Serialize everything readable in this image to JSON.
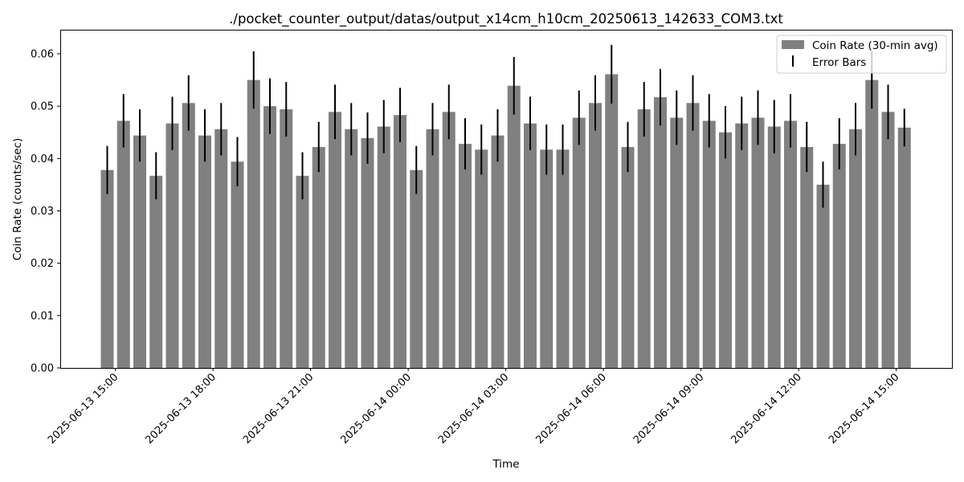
{
  "chart_data": {
    "type": "bar",
    "title": "./pocket_counter_output/datas/output_x14cm_h10cm_20250613_142633_COM3.txt",
    "xlabel": "Time",
    "ylabel": "Coin Rate (counts/sec)",
    "x_start": "2025-06-13 14:30",
    "x_interval_minutes": 30,
    "x": [
      "2025-06-13 14:30",
      "2025-06-13 15:00",
      "2025-06-13 15:30",
      "2025-06-13 16:00",
      "2025-06-13 16:30",
      "2025-06-13 17:00",
      "2025-06-13 17:30",
      "2025-06-13 18:00",
      "2025-06-13 18:30",
      "2025-06-13 19:00",
      "2025-06-13 19:30",
      "2025-06-13 20:00",
      "2025-06-13 20:30",
      "2025-06-13 21:00",
      "2025-06-13 21:30",
      "2025-06-13 22:00",
      "2025-06-13 22:30",
      "2025-06-13 23:00",
      "2025-06-13 23:30",
      "2025-06-14 00:00",
      "2025-06-14 00:30",
      "2025-06-14 01:00",
      "2025-06-14 01:30",
      "2025-06-14 02:00",
      "2025-06-14 02:30",
      "2025-06-14 03:00",
      "2025-06-14 03:30",
      "2025-06-14 04:00",
      "2025-06-14 04:30",
      "2025-06-14 05:00",
      "2025-06-14 05:30",
      "2025-06-14 06:00",
      "2025-06-14 06:30",
      "2025-06-14 07:00",
      "2025-06-14 07:30",
      "2025-06-14 08:00",
      "2025-06-14 08:30",
      "2025-06-14 09:00",
      "2025-06-14 09:30",
      "2025-06-14 10:00",
      "2025-06-14 10:30",
      "2025-06-14 11:00",
      "2025-06-14 11:30",
      "2025-06-14 12:00",
      "2025-06-14 12:30",
      "2025-06-14 13:00",
      "2025-06-14 13:30",
      "2025-06-14 14:00",
      "2025-06-14 14:30",
      "2025-06-14 15:00"
    ],
    "series": [
      {
        "name": "Coin Rate (30-min avg)",
        "values": [
          0.0378,
          0.0472,
          0.0444,
          0.0367,
          0.0467,
          0.0506,
          0.0444,
          0.0456,
          0.0394,
          0.055,
          0.05,
          0.0494,
          0.0367,
          0.0422,
          0.0489,
          0.0456,
          0.0439,
          0.0461,
          0.0483,
          0.0378,
          0.0456,
          0.0489,
          0.0428,
          0.0417,
          0.0444,
          0.0539,
          0.0467,
          0.0417,
          0.0417,
          0.0478,
          0.0506,
          0.0561,
          0.0422,
          0.0494,
          0.0517,
          0.0478,
          0.0506,
          0.0472,
          0.045,
          0.0467,
          0.0478,
          0.0461,
          0.0472,
          0.0422,
          0.035,
          0.0428,
          0.0456,
          0.055,
          0.0489,
          0.0459
        ],
        "errors": [
          0.0046,
          0.0051,
          0.005,
          0.0045,
          0.0051,
          0.0053,
          0.005,
          0.005,
          0.0047,
          0.0055,
          0.0053,
          0.0052,
          0.0045,
          0.0048,
          0.0052,
          0.005,
          0.0049,
          0.0051,
          0.0052,
          0.0046,
          0.005,
          0.0052,
          0.0049,
          0.0048,
          0.005,
          0.0055,
          0.0051,
          0.0048,
          0.0048,
          0.0052,
          0.0053,
          0.0056,
          0.0048,
          0.0052,
          0.0054,
          0.0052,
          0.0053,
          0.0051,
          0.005,
          0.0051,
          0.0052,
          0.0051,
          0.0051,
          0.0048,
          0.0044,
          0.0049,
          0.005,
          0.0055,
          0.0052,
          0.0036
        ]
      }
    ],
    "error_bars_label": "Error Bars",
    "bar_color": "#808080",
    "error_color": "#000000",
    "ylim": [
      0,
      0.0646
    ],
    "yticks": [
      {
        "value": 0.0,
        "label": "0.00"
      },
      {
        "value": 0.01,
        "label": "0.01"
      },
      {
        "value": 0.02,
        "label": "0.02"
      },
      {
        "value": 0.03,
        "label": "0.03"
      },
      {
        "value": 0.04,
        "label": "0.04"
      },
      {
        "value": 0.05,
        "label": "0.05"
      },
      {
        "value": 0.06,
        "label": "0.06"
      }
    ],
    "xticks": [
      {
        "index": 1,
        "label": "2025-06-13 15:00"
      },
      {
        "index": 7,
        "label": "2025-06-13 18:00"
      },
      {
        "index": 13,
        "label": "2025-06-13 21:00"
      },
      {
        "index": 19,
        "label": "2025-06-14 00:00"
      },
      {
        "index": 25,
        "label": "2025-06-14 03:00"
      },
      {
        "index": 31,
        "label": "2025-06-14 06:00"
      },
      {
        "index": 37,
        "label": "2025-06-14 09:00"
      },
      {
        "index": 43,
        "label": "2025-06-14 12:00"
      },
      {
        "index": 49,
        "label": "2025-06-14 15:00"
      }
    ],
    "grid": false,
    "legend_position": "top-right"
  }
}
